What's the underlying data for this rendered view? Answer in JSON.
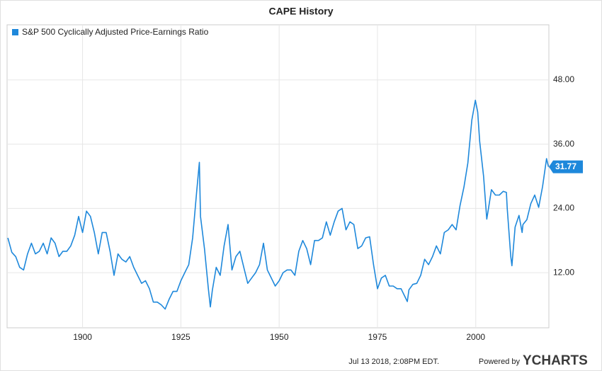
{
  "chart_data": {
    "type": "line",
    "title": "CAPE History",
    "x": [
      1881,
      1882,
      1883,
      1884,
      1885,
      1886,
      1887,
      1888,
      1889,
      1890,
      1891,
      1892,
      1893,
      1894,
      1895,
      1896,
      1897,
      1898,
      1899,
      1900,
      1901,
      1902,
      1903,
      1904,
      1905,
      1906,
      1907,
      1908,
      1909,
      1910,
      1911,
      1912,
      1913,
      1914,
      1915,
      1916,
      1917,
      1918,
      1919,
      1920,
      1921,
      1922,
      1923,
      1924,
      1925,
      1926,
      1927,
      1928,
      1929,
      1929.7,
      1930,
      1931,
      1932,
      1932.5,
      1933,
      1934,
      1935,
      1936,
      1937,
      1938,
      1939,
      1940,
      1941,
      1942,
      1943,
      1944,
      1945,
      1946,
      1947,
      1948,
      1949,
      1950,
      1951,
      1952,
      1953,
      1954,
      1955,
      1956,
      1957,
      1958,
      1959,
      1960,
      1961,
      1962,
      1963,
      1964,
      1965,
      1966,
      1967,
      1968,
      1969,
      1970,
      1971,
      1972,
      1973,
      1974,
      1975,
      1976,
      1977,
      1978,
      1979,
      1980,
      1981,
      1982,
      1982.6,
      1983,
      1984,
      1985,
      1986,
      1987,
      1988,
      1989,
      1990,
      1991,
      1992,
      1993,
      1994,
      1995,
      1996,
      1997,
      1998,
      1999,
      1999.9,
      2000.5,
      2001,
      2002,
      2002.8,
      2003,
      2004,
      2005,
      2006,
      2007,
      2007.8,
      2008,
      2008.9,
      2009.2,
      2010,
      2011,
      2011.8,
      2012,
      2013,
      2014,
      2015,
      2016,
      2017,
      2018,
      2018.5
    ],
    "series": [
      {
        "name": "S&P 500 Cyclically Adjusted Price-Earnings Ratio",
        "color": "#1e88db",
        "values": [
          18.5,
          15.8,
          15,
          13,
          12.5,
          15.5,
          17.5,
          15.5,
          16,
          17.5,
          15.5,
          18.5,
          17.5,
          15,
          16,
          16,
          17,
          19,
          22.5,
          19.5,
          23.5,
          22.5,
          19.5,
          15.5,
          19.5,
          19.5,
          16,
          11.5,
          15.5,
          14.5,
          14,
          15,
          13,
          11.5,
          10,
          10.5,
          9,
          6.5,
          6.5,
          6,
          5.2,
          7,
          8.5,
          8.5,
          10.5,
          12,
          13.5,
          18.5,
          27,
          32.6,
          22.5,
          16.5,
          9,
          5.6,
          8.7,
          13,
          11.5,
          17,
          21,
          12.5,
          15,
          16,
          13,
          10,
          11,
          12,
          13.5,
          17.5,
          12.5,
          11,
          9.5,
          10.5,
          12,
          12.5,
          12.5,
          11.5,
          16,
          18,
          16.5,
          13.5,
          18,
          18,
          18.5,
          21.5,
          19,
          21.5,
          23.5,
          24,
          20,
          21.5,
          21,
          16.5,
          17,
          18.5,
          18.7,
          13.5,
          9,
          11,
          11.5,
          9.5,
          9.5,
          9,
          9,
          7.5,
          6.6,
          8.8,
          9.8,
          10,
          11.5,
          14.5,
          13.5,
          15,
          17,
          15.5,
          19.5,
          20,
          21,
          20,
          24.5,
          28,
          32.5,
          40.5,
          44.2,
          42,
          36.5,
          30,
          22,
          22.9,
          27.5,
          26.5,
          26.5,
          27.2,
          27,
          24,
          15,
          13.3,
          20.5,
          22.7,
          19.5,
          21,
          21.9,
          24.9,
          26.5,
          24.2,
          28.1,
          33.3,
          31.77
        ]
      }
    ],
    "xlim": [
      1880.8,
      2018.6
    ],
    "xticks": [
      1900,
      1925,
      1950,
      1975,
      2000
    ],
    "ylim": [
      1.7,
      58.3
    ],
    "yticks": [
      {
        "value": 12,
        "label": "12.00"
      },
      {
        "value": 24,
        "label": "24.00"
      },
      {
        "value": 36,
        "label": "36.00"
      },
      {
        "value": 48,
        "label": "48.00"
      }
    ],
    "grid": true,
    "legend": "top-left",
    "footer": {
      "timestamp": "Jul 13 2018, 2:08PM EDT.",
      "powered": "Powered by",
      "brand": "YCHARTS"
    }
  }
}
